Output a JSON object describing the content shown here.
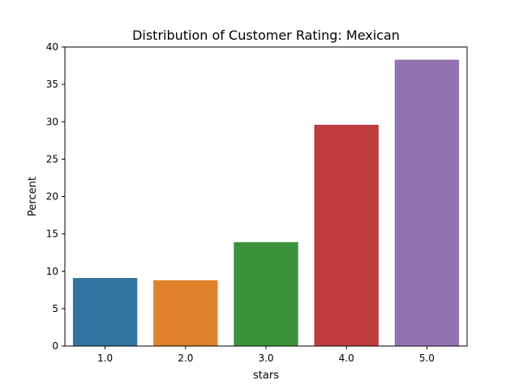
{
  "chart_data": {
    "type": "bar",
    "title": "Distribution of Customer Rating: Mexican",
    "xlabel": "stars",
    "ylabel": "Percent",
    "categories": [
      "1.0",
      "2.0",
      "3.0",
      "4.0",
      "5.0"
    ],
    "values": [
      9.1,
      8.8,
      13.9,
      29.6,
      38.3
    ],
    "colors": [
      "#3274a1",
      "#e1812c",
      "#3a923a",
      "#c03d3e",
      "#9372b2"
    ],
    "ylim": [
      0,
      40
    ],
    "yticks": [
      0,
      5,
      10,
      15,
      20,
      25,
      30,
      35,
      40
    ],
    "grid": false,
    "legend": "none"
  }
}
